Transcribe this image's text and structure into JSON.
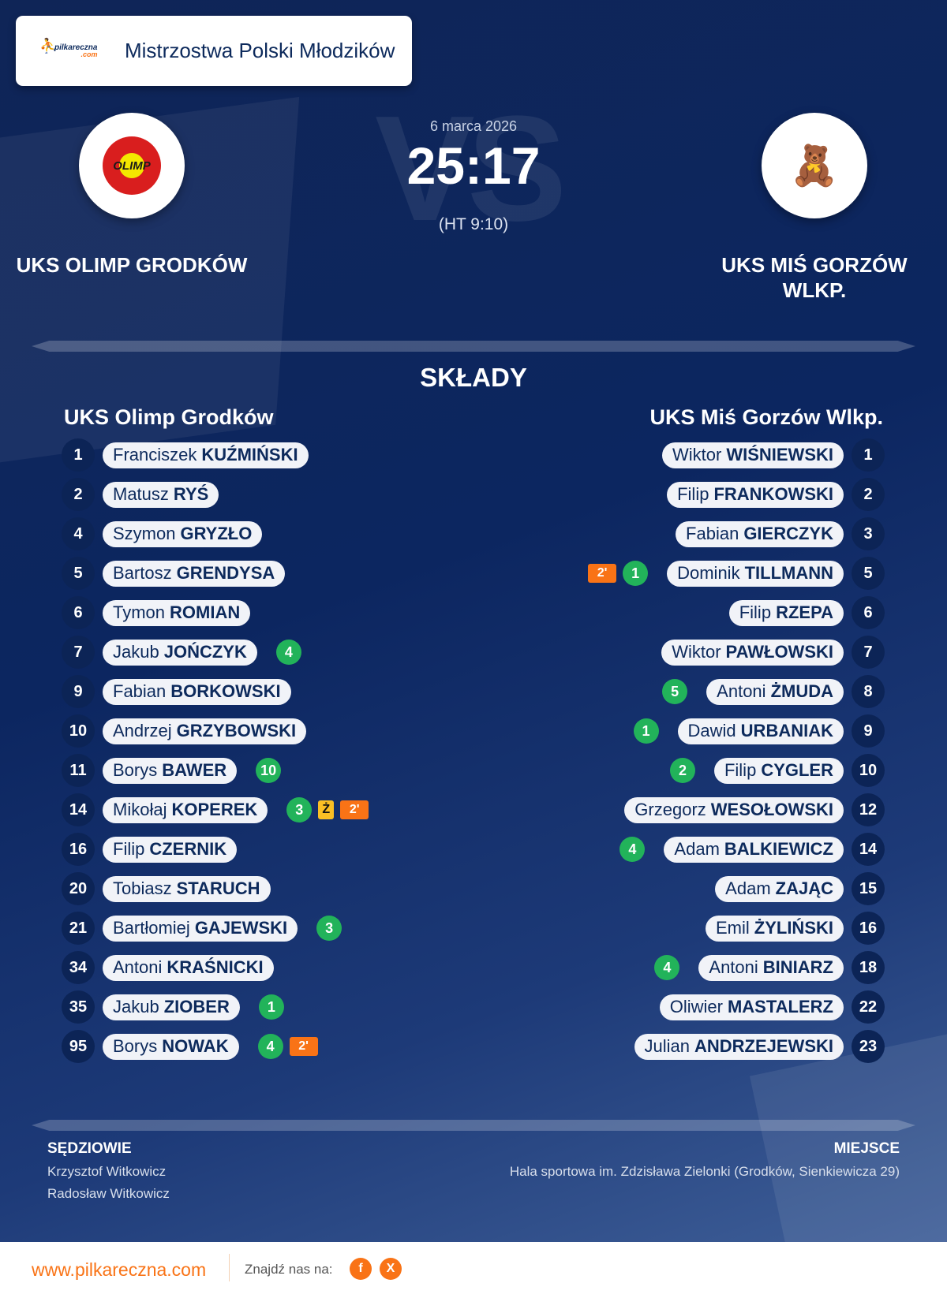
{
  "header": {
    "brand_logo": "pilkareczna.com",
    "title": "Mistrzostwa Polski Młodzików"
  },
  "match": {
    "date": "6 marca 2026",
    "score": "25:17",
    "halftime": "(HT 9:10)",
    "vs_watermark": "VS",
    "home": {
      "name": "UKS OLIMP GRODKÓW",
      "crest": "OLIMP"
    },
    "away": {
      "name": "UKS MIŚ GORZÓW WLKP.",
      "crest": "bear-crest"
    }
  },
  "lineups": {
    "title": "SKŁADY",
    "home": {
      "team": "UKS Olimp Grodków",
      "players": [
        {
          "no": "1",
          "first": "Franciszek",
          "last": "KUŹMIŃSKI"
        },
        {
          "no": "2",
          "first": "Matusz",
          "last": "RYŚ"
        },
        {
          "no": "4",
          "first": "Szymon",
          "last": "GRYZŁO"
        },
        {
          "no": "5",
          "first": "Bartosz",
          "last": "GRENDYSA"
        },
        {
          "no": "6",
          "first": "Tymon",
          "last": "ROMIAN"
        },
        {
          "no": "7",
          "first": "Jakub",
          "last": "JOŃCZYK",
          "goals": "4"
        },
        {
          "no": "9",
          "first": "Fabian",
          "last": "BORKOWSKI"
        },
        {
          "no": "10",
          "first": "Andrzej",
          "last": "GRZYBOWSKI"
        },
        {
          "no": "11",
          "first": "Borys",
          "last": "BAWER",
          "goals": "10"
        },
        {
          "no": "14",
          "first": "Mikołaj",
          "last": "KOPEREK",
          "goals": "3",
          "yellow": "Ż",
          "suspension": "2'"
        },
        {
          "no": "16",
          "first": "Filip",
          "last": "CZERNIK"
        },
        {
          "no": "20",
          "first": "Tobiasz",
          "last": "STARUCH"
        },
        {
          "no": "21",
          "first": "Bartłomiej",
          "last": "GAJEWSKI",
          "goals": "3"
        },
        {
          "no": "34",
          "first": "Antoni",
          "last": "KRAŚNICKI"
        },
        {
          "no": "35",
          "first": "Jakub",
          "last": "ZIOBER",
          "goals": "1"
        },
        {
          "no": "95",
          "first": "Borys",
          "last": "NOWAK",
          "goals": "4",
          "suspension": "2'"
        }
      ]
    },
    "away": {
      "team": "UKS Miś Gorzów Wlkp.",
      "players": [
        {
          "no": "1",
          "first": "Wiktor",
          "last": "WIŚNIEWSKI"
        },
        {
          "no": "2",
          "first": "Filip",
          "last": "FRANKOWSKI"
        },
        {
          "no": "3",
          "first": "Fabian",
          "last": "GIERCZYK"
        },
        {
          "no": "5",
          "first": "Dominik",
          "last": "TILLMANN",
          "goals": "1",
          "suspension": "2'"
        },
        {
          "no": "6",
          "first": "Filip",
          "last": "RZEPA"
        },
        {
          "no": "7",
          "first": "Wiktor",
          "last": "PAWŁOWSKI"
        },
        {
          "no": "8",
          "first": "Antoni",
          "last": "ŻMUDA",
          "goals": "5"
        },
        {
          "no": "9",
          "first": "Dawid",
          "last": "URBANIAK",
          "goals": "1"
        },
        {
          "no": "10",
          "first": "Filip",
          "last": "CYGLER",
          "goals": "2"
        },
        {
          "no": "12",
          "first": "Grzegorz",
          "last": "WESOŁOWSKI"
        },
        {
          "no": "14",
          "first": "Adam",
          "last": "BALKIEWICZ",
          "goals": "4"
        },
        {
          "no": "15",
          "first": "Adam",
          "last": "ZAJĄC"
        },
        {
          "no": "16",
          "first": "Emil",
          "last": "ŻYLIŃSKI"
        },
        {
          "no": "18",
          "first": "Antoni",
          "last": "BINIARZ",
          "goals": "4"
        },
        {
          "no": "22",
          "first": "Oliwier",
          "last": "MASTALERZ"
        },
        {
          "no": "23",
          "first": "Julian",
          "last": "ANDRZEJEWSKI"
        }
      ]
    }
  },
  "officials": {
    "label": "SĘDZIOWIE",
    "names": [
      "Krzysztof Witkowicz",
      "Radosław Witkowicz"
    ]
  },
  "venue": {
    "label": "MIEJSCE",
    "text": "Hala sportowa im. Zdzisława Zielonki (Grodków, Sienkiewicza 29)"
  },
  "footer": {
    "site": "www.pilkareczna.com",
    "find_us": "Znajdź nas na:",
    "facebook": "f",
    "x": "X"
  },
  "colors": {
    "goal": "#22b35a",
    "suspension": "#f97316",
    "yellow_card": "#fbbf24",
    "pill": "#f1f3f8",
    "text_dark": "#0d2a5c"
  }
}
